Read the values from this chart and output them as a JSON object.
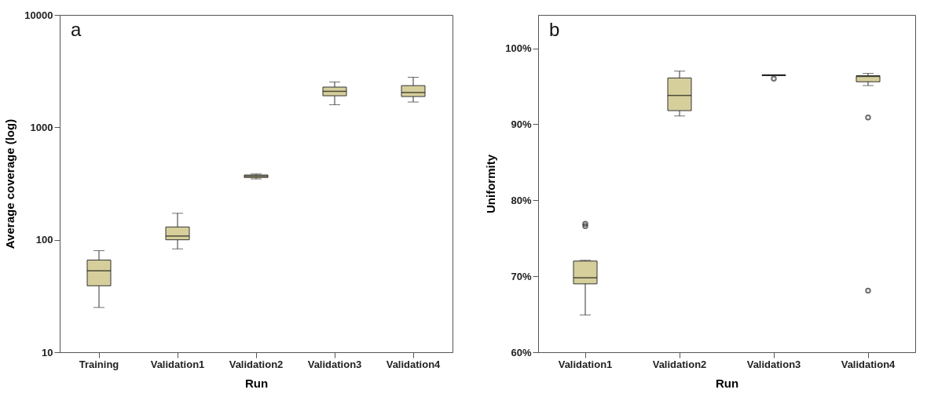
{
  "chart_data": [
    {
      "type": "box",
      "xlabel": "Run",
      "ylabel": "Average coverage (log)",
      "annotations": [
        "a"
      ],
      "log": true,
      "grid": false,
      "categories": [
        "Training",
        "Validation1",
        "Validation2",
        "Validation3",
        "Validation4"
      ],
      "ylim": [
        10,
        10000
      ],
      "yticks": [
        10,
        100,
        1000,
        10000
      ],
      "series": [
        {
          "color": "#d6cf9c",
          "boxes": [
            {
              "low": 25,
              "q1": 39,
              "median": 53,
              "q3": 66,
              "high": 80
            },
            {
              "low": 83,
              "q1": 100,
              "median": 108,
              "q3": 130,
              "high": 172
            },
            {
              "low": 348,
              "q1": 358,
              "median": 368,
              "q3": 377,
              "high": 385
            },
            {
              "low": 1590,
              "q1": 1910,
              "median": 2090,
              "q3": 2280,
              "high": 2530
            },
            {
              "low": 1680,
              "q1": 1880,
              "median": 2040,
              "q3": 2350,
              "high": 2790
            }
          ]
        }
      ]
    },
    {
      "type": "box",
      "xlabel": "Run",
      "ylabel": "Uniformity",
      "annotations": [
        "b"
      ],
      "grid": false,
      "categories": [
        "Validation1",
        "Validation2",
        "Validation3",
        "Validation4"
      ],
      "ylim": [
        60,
        104.4
      ],
      "yticks": [
        {
          "value": 60,
          "label": "60%"
        },
        {
          "value": 70,
          "label": "70%"
        },
        {
          "value": 80,
          "label": "80%"
        },
        {
          "value": 90,
          "label": "90%"
        },
        {
          "value": 100,
          "label": "100%"
        }
      ],
      "series": [
        {
          "color": "#d6cf9c",
          "boxes": [
            {
              "low": 64.9,
              "q1": 69.0,
              "median": 69.8,
              "q3": 72.0,
              "high": 72.1,
              "outliers": [
                76.9,
                76.6
              ]
            },
            {
              "low": 91.1,
              "q1": 91.8,
              "median": 93.8,
              "q3": 96.1,
              "high": 97.0
            },
            {
              "low": 96.4,
              "q1": 96.4,
              "median": 96.5,
              "q3": 96.5,
              "high": 96.5,
              "outliers": [
                96.0
              ]
            },
            {
              "low": 95.1,
              "q1": 95.6,
              "median": 96.3,
              "q3": 96.4,
              "high": 96.7,
              "outliers": [
                90.9,
                68.1
              ]
            }
          ]
        }
      ]
    }
  ]
}
